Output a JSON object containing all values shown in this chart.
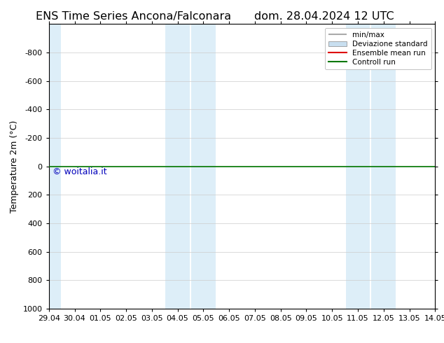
{
  "title_left": "ENS Time Series Ancona/Falconara",
  "title_right": "dom. 28.04.2024 12 UTC",
  "ylabel": "Temperature 2m (°C)",
  "background_color": "#ffffff",
  "plot_bg_color": "#ffffff",
  "ylim_top": -1000,
  "ylim_bottom": 1000,
  "yticks": [
    -800,
    -600,
    -400,
    -200,
    0,
    200,
    400,
    600,
    800,
    1000
  ],
  "xtick_labels": [
    "29.04",
    "30.04",
    "01.05",
    "02.05",
    "03.05",
    "04.05",
    "05.05",
    "06.05",
    "07.05",
    "08.05",
    "09.05",
    "10.05",
    "11.05",
    "12.05",
    "13.05",
    "14.05"
  ],
  "xtick_positions": [
    0,
    1,
    2,
    3,
    4,
    5,
    6,
    7,
    8,
    9,
    10,
    11,
    12,
    13,
    14,
    15
  ],
  "shaded_bands": [
    {
      "x_start": 0,
      "x_end": 0.47,
      "color": "#ddeef8"
    },
    {
      "x_start": 4.53,
      "x_end": 5.47,
      "color": "#ddeef8"
    },
    {
      "x_start": 5.53,
      "x_end": 6.47,
      "color": "#ddeef8"
    },
    {
      "x_start": 11.53,
      "x_end": 12.47,
      "color": "#ddeef8"
    },
    {
      "x_start": 12.53,
      "x_end": 13.47,
      "color": "#ddeef8"
    }
  ],
  "green_line_y": 0,
  "watermark": "© woitalia.it",
  "watermark_color": "#0000bb",
  "legend_entries": [
    {
      "label": "min/max",
      "color": "#aaaaaa",
      "lw": 1.5
    },
    {
      "label": "Deviazione standard",
      "color": "#c8dff0",
      "lw": 8
    },
    {
      "label": "Ensemble mean run",
      "color": "#dd0000",
      "lw": 1.5
    },
    {
      "label": "Controll run",
      "color": "#007700",
      "lw": 1.5
    }
  ],
  "font_size_title": 11.5,
  "font_size_labels": 9,
  "font_size_ticks": 8,
  "font_size_legend": 7.5,
  "font_size_watermark": 9,
  "grid_color": "#cccccc",
  "axis_color": "#000000"
}
